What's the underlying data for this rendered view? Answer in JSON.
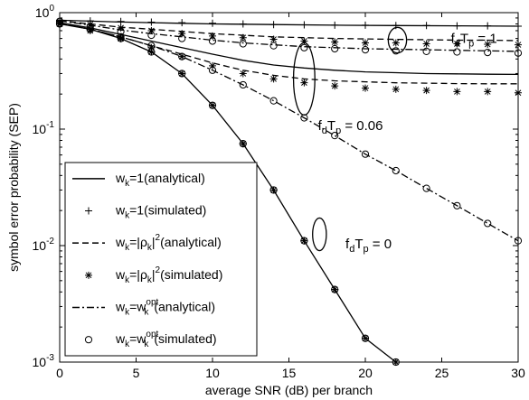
{
  "chart_data": {
    "type": "line",
    "title": "",
    "xlabel": "average SNR (dB) per branch",
    "ylabel": "symbol error probability (SEP)",
    "x_scale": "linear",
    "y_scale": "log",
    "xlim": [
      0,
      30
    ],
    "ylim": [
      0.001,
      1
    ],
    "grid": false,
    "x_ticks": [
      "0",
      "5",
      "10",
      "15",
      "20",
      "25",
      "30"
    ],
    "y_ticks": [
      "10^-3",
      "10^-2",
      "10^-1",
      "10^0"
    ],
    "legend_position": "bottom-left",
    "legend": [
      {
        "main": "w",
        "sub": "k",
        "rest": "=1(analytical)",
        "marker": "line-solid"
      },
      {
        "main": "w",
        "sub": "k",
        "rest": "=1(simulated)",
        "marker": "plus"
      },
      {
        "main": "w",
        "sub": "k",
        "rest": "=|ρ",
        "sub2": "k",
        "rest2": "|",
        "sup": "2",
        "rest3": "(analytical)",
        "marker": "line-dashed"
      },
      {
        "main": "w",
        "sub": "k",
        "rest": "=|ρ",
        "sub2": "k",
        "rest2": "|",
        "sup": "2",
        "rest3": "(simulated)",
        "marker": "star"
      },
      {
        "main": "w",
        "sub": "k",
        "rest": "=w",
        "subsup": {
          "sup": "opt",
          "sub": "k"
        },
        "rest2": "(analytical)",
        "marker": "line-dashdot"
      },
      {
        "main": "w",
        "sub": "k",
        "rest": "=w",
        "subsup": {
          "sup": "opt",
          "sub": "k"
        },
        "rest2": "(simulated)",
        "marker": "circle"
      }
    ],
    "annotations": [
      {
        "base": "f",
        "sub1": "d",
        "mid": "T",
        "sub2": "p",
        "tail": " = 1",
        "data_x": 25.6,
        "data_y": 0.55
      },
      {
        "base": "f",
        "sub1": "d",
        "mid": "T",
        "sub2": "p",
        "tail": " = 0.06",
        "data_x": 16.9,
        "data_y": 0.098
      },
      {
        "base": "f",
        "sub1": "d",
        "mid": "T",
        "sub2": "p",
        "tail": " = 0",
        "data_x": 18.7,
        "data_y": 0.0095
      }
    ],
    "ellipses": [
      {
        "cx": 22.1,
        "cy": 0.58,
        "rx": 0.6,
        "ry_decades": 0.11
      },
      {
        "cx": 16.0,
        "cy": 0.27,
        "rx": 0.7,
        "ry_decades": 0.31
      },
      {
        "cx": 17.0,
        "cy": 0.0125,
        "rx": 0.45,
        "ry_decades": 0.14
      }
    ],
    "series": [
      {
        "name": "w_k=1(analytical)",
        "fd": "0",
        "style": "solid",
        "kind": "line",
        "x": [
          0,
          2,
          4,
          6,
          8,
          10,
          12,
          14,
          16,
          18,
          20,
          22
        ],
        "y": [
          0.8,
          0.72,
          0.6,
          0.46,
          0.3,
          0.16,
          0.075,
          0.03,
          0.011,
          0.0042,
          0.0016,
          0.001
        ]
      },
      {
        "name": "w_k=1(simulated)",
        "fd": "0",
        "marker": "plus",
        "kind": "markers",
        "x": [
          0,
          2,
          4,
          6,
          8,
          10,
          12,
          14,
          16,
          18,
          20,
          22
        ],
        "y": [
          0.8,
          0.72,
          0.6,
          0.46,
          0.3,
          0.16,
          0.075,
          0.03,
          0.011,
          0.0042,
          0.0016,
          0.001
        ]
      },
      {
        "name": "w_k=|ρ_k|^2(simulated)",
        "fd": "0",
        "marker": "star",
        "kind": "markers",
        "x": [
          0,
          2,
          4,
          6,
          8,
          10,
          12,
          14,
          16,
          18,
          20,
          22
        ],
        "y": [
          0.8,
          0.72,
          0.6,
          0.46,
          0.3,
          0.16,
          0.075,
          0.03,
          0.011,
          0.0042,
          0.0016,
          0.001
        ]
      },
      {
        "name": "w_k=w_k^opt(simulated)",
        "fd": "0",
        "marker": "circle",
        "kind": "markers",
        "x": [
          0,
          2,
          4,
          6,
          8,
          10,
          12,
          14,
          16,
          18,
          20,
          22
        ],
        "y": [
          0.8,
          0.72,
          0.6,
          0.46,
          0.3,
          0.16,
          0.075,
          0.03,
          0.011,
          0.0042,
          0.0016,
          0.001
        ]
      },
      {
        "name": "w_k=1(analytical)",
        "fd": "1",
        "style": "solid",
        "kind": "line",
        "x": [
          0,
          2,
          4,
          6,
          8,
          10,
          14,
          18,
          22,
          26,
          30
        ],
        "y": [
          0.86,
          0.845,
          0.83,
          0.82,
          0.81,
          0.8,
          0.79,
          0.78,
          0.775,
          0.77,
          0.765
        ]
      },
      {
        "name": "w_k=1(simulated)",
        "fd": "1",
        "marker": "plus",
        "kind": "markers",
        "x": [
          0,
          2,
          4,
          6,
          8,
          10,
          12,
          14,
          16,
          18,
          20,
          22,
          24,
          26,
          28,
          30
        ],
        "y": [
          0.86,
          0.85,
          0.84,
          0.83,
          0.82,
          0.81,
          0.8,
          0.79,
          0.785,
          0.78,
          0.78,
          0.775,
          0.775,
          0.77,
          0.77,
          0.765
        ]
      },
      {
        "name": "w_k=|ρ_k|^2(analytical)",
        "fd": "1",
        "style": "dashed",
        "kind": "line",
        "x": [
          0,
          2,
          4,
          6,
          8,
          10,
          12,
          14,
          16,
          18,
          20,
          22,
          24,
          26,
          28,
          30
        ],
        "y": [
          0.85,
          0.8,
          0.75,
          0.72,
          0.69,
          0.66,
          0.64,
          0.62,
          0.61,
          0.6,
          0.595,
          0.59,
          0.585,
          0.58,
          0.58,
          0.575
        ]
      },
      {
        "name": "w_k=|ρ_k|^2(simulated)",
        "fd": "1",
        "marker": "star",
        "kind": "markers",
        "x": [
          0,
          2,
          4,
          6,
          8,
          10,
          12,
          14,
          16,
          18,
          20,
          22,
          24,
          26,
          28,
          30
        ],
        "y": [
          0.84,
          0.79,
          0.74,
          0.7,
          0.66,
          0.63,
          0.61,
          0.59,
          0.57,
          0.56,
          0.55,
          0.55,
          0.54,
          0.54,
          0.535,
          0.53
        ]
      },
      {
        "name": "w_k=w_k^opt(analytical)",
        "fd": "1",
        "style": "dashdot",
        "kind": "line",
        "x": [
          0,
          2,
          4,
          6,
          8,
          10,
          12,
          14,
          16,
          18,
          20,
          22,
          24,
          26,
          28,
          30
        ],
        "y": [
          0.85,
          0.78,
          0.71,
          0.66,
          0.62,
          0.58,
          0.55,
          0.53,
          0.51,
          0.5,
          0.49,
          0.485,
          0.48,
          0.475,
          0.47,
          0.465
        ]
      },
      {
        "name": "w_k=w_k^opt(simulated)",
        "fd": "1",
        "marker": "circle",
        "kind": "markers",
        "x": [
          0,
          2,
          4,
          6,
          8,
          10,
          12,
          14,
          16,
          18,
          20,
          22,
          24,
          26,
          28,
          30
        ],
        "y": [
          0.84,
          0.76,
          0.69,
          0.64,
          0.6,
          0.57,
          0.54,
          0.52,
          0.5,
          0.49,
          0.48,
          0.47,
          0.465,
          0.46,
          0.455,
          0.45
        ]
      },
      {
        "name": "w_k=1(analytical)",
        "fd": "0.06",
        "style": "solid",
        "kind": "line",
        "x": [
          0,
          2,
          4,
          6,
          8,
          10,
          12,
          14,
          16,
          18,
          20,
          22,
          24,
          26,
          28,
          30
        ],
        "y": [
          0.82,
          0.74,
          0.65,
          0.57,
          0.5,
          0.44,
          0.39,
          0.355,
          0.335,
          0.32,
          0.31,
          0.305,
          0.3,
          0.298,
          0.296,
          0.295
        ]
      },
      {
        "name": "w_k=|ρ_k|^2(analytical)",
        "fd": "0.06",
        "style": "dashed",
        "kind": "line",
        "x": [
          0,
          2,
          4,
          6,
          8,
          10,
          12,
          14,
          16,
          18,
          20,
          22,
          24,
          26,
          28,
          30
        ],
        "y": [
          0.81,
          0.72,
          0.62,
          0.52,
          0.44,
          0.37,
          0.32,
          0.29,
          0.27,
          0.26,
          0.255,
          0.25,
          0.248,
          0.246,
          0.245,
          0.245
        ]
      },
      {
        "name": "w_k=|ρ_k|^2(simulated)",
        "fd": "0.06",
        "marker": "star",
        "kind": "markers",
        "x": [
          0,
          2,
          4,
          6,
          8,
          10,
          12,
          14,
          16,
          18,
          20,
          22,
          24,
          26,
          28,
          30
        ],
        "y": [
          0.8,
          0.7,
          0.6,
          0.5,
          0.42,
          0.35,
          0.3,
          0.27,
          0.25,
          0.235,
          0.225,
          0.22,
          0.215,
          0.21,
          0.21,
          0.205
        ]
      },
      {
        "name": "w_k=w_k^opt(analytical)",
        "fd": "0.06",
        "style": "dashdot",
        "kind": "line",
        "x": [
          0,
          2,
          4,
          6,
          8,
          10,
          12,
          14,
          16,
          18,
          20,
          22,
          24,
          26,
          28,
          30
        ],
        "y": [
          0.81,
          0.72,
          0.62,
          0.52,
          0.42,
          0.32,
          0.24,
          0.175,
          0.125,
          0.088,
          0.061,
          0.044,
          0.031,
          0.022,
          0.0155,
          0.011
        ]
      },
      {
        "name": "w_k=w_k^opt(simulated)",
        "fd": "0.06",
        "marker": "circle",
        "kind": "markers",
        "x": [
          0,
          2,
          4,
          6,
          8,
          10,
          12,
          14,
          16,
          18,
          20,
          22,
          24,
          26,
          28,
          30
        ],
        "y": [
          0.81,
          0.72,
          0.62,
          0.52,
          0.42,
          0.32,
          0.24,
          0.175,
          0.125,
          0.088,
          0.061,
          0.044,
          0.031,
          0.022,
          0.0155,
          0.011
        ]
      }
    ]
  }
}
